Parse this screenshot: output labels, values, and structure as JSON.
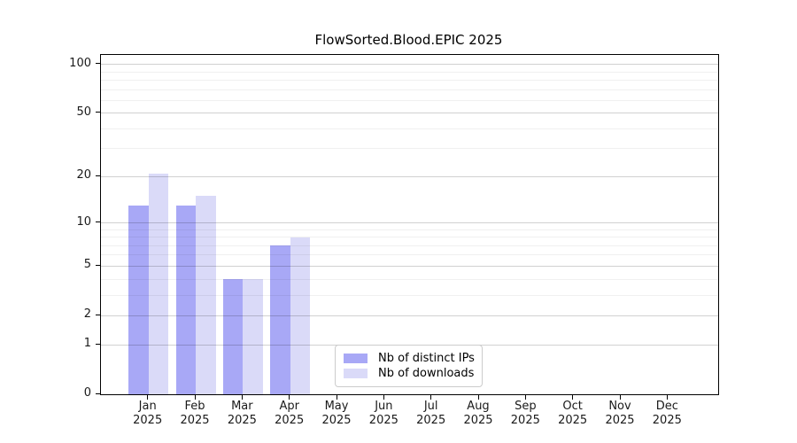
{
  "chart_data": {
    "type": "bar",
    "title": "FlowSorted.Blood.EPIC 2025",
    "categories": [
      {
        "month": "Jan",
        "year": "2025"
      },
      {
        "month": "Feb",
        "year": "2025"
      },
      {
        "month": "Mar",
        "year": "2025"
      },
      {
        "month": "Apr",
        "year": "2025"
      },
      {
        "month": "May",
        "year": "2025"
      },
      {
        "month": "Jun",
        "year": "2025"
      },
      {
        "month": "Jul",
        "year": "2025"
      },
      {
        "month": "Aug",
        "year": "2025"
      },
      {
        "month": "Sep",
        "year": "2025"
      },
      {
        "month": "Oct",
        "year": "2025"
      },
      {
        "month": "Nov",
        "year": "2025"
      },
      {
        "month": "Dec",
        "year": "2025"
      }
    ],
    "series": [
      {
        "name": "Nb of distinct IPs",
        "color": "#a8a8f6",
        "values": [
          13,
          13,
          4,
          7,
          0,
          0,
          0,
          0,
          0,
          0,
          0,
          0
        ]
      },
      {
        "name": "Nb of downloads",
        "color": "#dadaf8",
        "values": [
          21,
          15,
          4,
          8,
          0,
          0,
          0,
          0,
          0,
          0,
          0,
          0
        ]
      }
    ],
    "y_axis": {
      "scale": "log1p",
      "top_value": 114.2,
      "major_ticks": [
        100,
        50,
        20,
        10,
        5,
        2,
        1,
        0
      ],
      "minor_gridlines": [
        90,
        80,
        70,
        60,
        40,
        30,
        9,
        8,
        7,
        6,
        4,
        3
      ]
    },
    "grid": {
      "horizontal": true,
      "major_color": "rgba(0,0,0,0.18)",
      "minor_color": "rgba(0,0,0,0.06)"
    },
    "legend": {
      "position": "lower center",
      "items": [
        "Nb of distinct IPs",
        "Nb of downloads"
      ]
    }
  }
}
